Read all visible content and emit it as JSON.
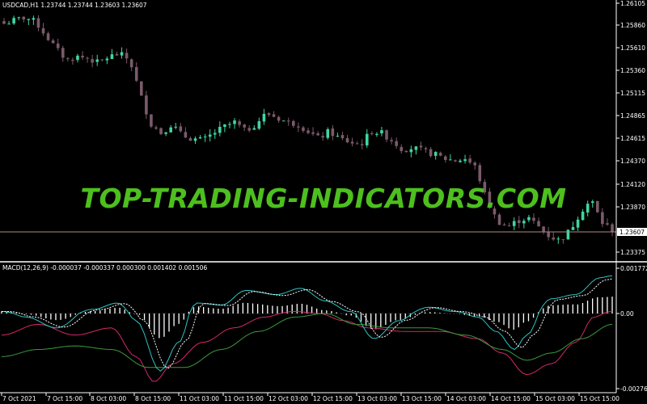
{
  "main_header": "USDCAD,H1  1.23744 1.23744 1.23603 1.23607",
  "macd_header": "MACD(12,26,9) -0.000037 -0.000337 0.000300 0.001402 0.001506",
  "watermark": "TOP-TRADING-INDICATORS.COM",
  "current_price_label": "1.23607",
  "price_axis_labels": [
    "1.26105",
    "1.25860",
    "1.25610",
    "1.25360",
    "1.25115",
    "1.24865",
    "1.24615",
    "1.24370",
    "1.24120",
    "1.23870",
    "1.23375"
  ],
  "macd_axis_labels": [
    "0.001772",
    "0.00",
    "-0.002769"
  ],
  "time_axis_labels": [
    "7 Oct 2021",
    "7 Oct 15:00",
    "8 Oct 03:00",
    "8 Oct 15:00",
    "11 Oct 03:00",
    "11 Oct 15:00",
    "12 Oct 03:00",
    "12 Oct 15:00",
    "13 Oct 03:00",
    "13 Oct 15:00",
    "14 Oct 03:00",
    "14 Oct 15:00",
    "15 Oct 03:00",
    "15 Oct 15:00"
  ],
  "colors": {
    "bull": "#3fd6a0",
    "bear": "#7a5a6a",
    "macd_line": "#2ec4c4",
    "signal_line": "#ffffff",
    "histogram": "#ffffff",
    "line_a": "#d02a6a",
    "line_b": "#3a9a3a",
    "price_line": "#b08888",
    "watermark": "#4dbf1e"
  },
  "chart_data": {
    "type": "candlestick",
    "symbol": "USDCAD",
    "timeframe": "H1",
    "last_price": 1.23607,
    "ylim": [
      1.2325,
      1.2615
    ],
    "close_path": [
      1.2588,
      1.2592,
      1.2595,
      1.259,
      1.2575,
      1.256,
      1.2548,
      1.2552,
      1.255,
      1.2545,
      1.2552,
      1.2555,
      1.2548,
      1.251,
      1.2478,
      1.2468,
      1.2478,
      1.2465,
      1.2462,
      1.246,
      1.2468,
      1.2475,
      1.248,
      1.247,
      1.2478,
      1.249,
      1.2485,
      1.248,
      1.2478,
      1.247,
      1.2462,
      1.247,
      1.2462,
      1.2458,
      1.2455,
      1.247,
      1.2468,
      1.246,
      1.245,
      1.2452,
      1.2448,
      1.2445,
      1.244,
      1.2438,
      1.244,
      1.243,
      1.2395,
      1.2372,
      1.2365,
      1.2372,
      1.2375,
      1.2365,
      1.2355,
      1.235,
      1.2362,
      1.2382,
      1.2395,
      1.237,
      1.2362
    ],
    "macd": {
      "ylim": [
        -0.002769,
        0.001772
      ],
      "levels": [
        0.0
      ]
    }
  }
}
